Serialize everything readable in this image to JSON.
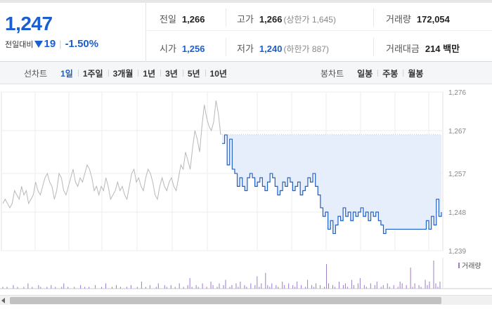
{
  "quote": {
    "price": "1,247",
    "change_label": "전일대비",
    "change_value": "19",
    "change_rate": "-1.50%",
    "change_direction_icon": "down-triangle-icon",
    "color_down": "#1a5fd1",
    "stats": [
      {
        "label": "전일",
        "value": "1,266",
        "extra": "",
        "color": "default"
      },
      {
        "label": "고가",
        "value": "1,266",
        "extra": "(상한가 1,645)",
        "color": "default"
      },
      {
        "label": "거래량",
        "value": "172,054",
        "extra": "",
        "color": "default"
      },
      {
        "label": "시가",
        "value": "1,256",
        "extra": "",
        "color": "blue"
      },
      {
        "label": "저가",
        "value": "1,240",
        "extra": "(하한가 887)",
        "color": "blue"
      },
      {
        "label": "거래대금",
        "value": "214 백만",
        "extra": "",
        "color": "default"
      }
    ]
  },
  "toolbar": {
    "line_chart_title": "선차트",
    "line_periods": [
      "1일",
      "1주일",
      "3개월",
      "1년",
      "3년",
      "5년",
      "10년"
    ],
    "active_period": "1일",
    "candle_chart_title": "봉차트",
    "candle_periods": [
      "일봉",
      "주봉",
      "월봉"
    ]
  },
  "chart_data": {
    "type": "line",
    "y_ticks": [
      "1,276",
      "1,267",
      "1,257",
      "1,248",
      "1,239"
    ],
    "ylim": [
      1239,
      1276
    ],
    "prev_close_ref": 1266,
    "volume_legend": "거래량",
    "colors": {
      "prev_day_line": "#b8b8b8",
      "today_line": "#1f5fc8",
      "fill": "#e6eefb",
      "volume_bar": "#9a7fc8"
    },
    "prev_day_series": [
      1250,
      1251,
      1250,
      1249,
      1250,
      1253,
      1252,
      1251,
      1254,
      1252,
      1253,
      1250,
      1251,
      1252,
      1255,
      1253,
      1252,
      1254,
      1256,
      1257,
      1255,
      1254,
      1251,
      1253,
      1257,
      1256,
      1253,
      1252,
      1254,
      1256,
      1258,
      1255,
      1254,
      1256,
      1255,
      1257,
      1259,
      1258,
      1256,
      1253,
      1254,
      1252,
      1254,
      1253,
      1256,
      1254,
      1251,
      1252,
      1253,
      1255,
      1253,
      1254,
      1252,
      1251,
      1254,
      1257,
      1258,
      1255,
      1256,
      1254,
      1253,
      1256,
      1258,
      1257,
      1255,
      1252,
      1251,
      1254,
      1256,
      1254,
      1253,
      1255,
      1256,
      1254,
      1253,
      1256,
      1259,
      1258,
      1262,
      1260,
      1258,
      1263,
      1267,
      1265,
      1262,
      1268,
      1273,
      1270,
      1268,
      1267,
      1269,
      1274,
      1271,
      1266
    ],
    "today_series": [
      1264,
      1266,
      1259,
      1265,
      1258,
      1257,
      1254,
      1256,
      1254,
      1253,
      1256,
      1257,
      1256,
      1254,
      1255,
      1256,
      1254,
      1253,
      1255,
      1257,
      1256,
      1254,
      1252,
      1253,
      1255,
      1254,
      1256,
      1255,
      1253,
      1254,
      1255,
      1252,
      1253,
      1254,
      1256,
      1255,
      1257,
      1254,
      1252,
      1249,
      1247,
      1248,
      1244,
      1246,
      1243,
      1245,
      1247,
      1246,
      1249,
      1247,
      1248,
      1246,
      1248,
      1247,
      1248,
      1249,
      1247,
      1248,
      1246,
      1248,
      1247,
      1248,
      1246,
      1245,
      1243,
      1244,
      1244,
      1244,
      1244,
      1244,
      1244,
      1244,
      1244,
      1244,
      1244,
      1244,
      1244,
      1244,
      1244,
      1244,
      1244,
      1246,
      1244,
      1247,
      1245,
      1251,
      1247,
      1248
    ],
    "volume_series": [
      1,
      0,
      1,
      0,
      0,
      2,
      0,
      1,
      0,
      0,
      1,
      0,
      3,
      0,
      1,
      0,
      0,
      2,
      1,
      0,
      0,
      1,
      0,
      2,
      0,
      1,
      0,
      0,
      1,
      3,
      0,
      1,
      0,
      0,
      1,
      0,
      0,
      2,
      0,
      1,
      0,
      1,
      0,
      0,
      2,
      0,
      0,
      1,
      0,
      3,
      0,
      0,
      1,
      0,
      2,
      0,
      1,
      0,
      0,
      1,
      0,
      2,
      0,
      0,
      1,
      0,
      4,
      0,
      1,
      0,
      2,
      0,
      0,
      1,
      3,
      0,
      0,
      2,
      1,
      0,
      2,
      0,
      1,
      0,
      3,
      0,
      1,
      0,
      2,
      6,
      1,
      0,
      2,
      1,
      0,
      3,
      0,
      1,
      0,
      4,
      2,
      0,
      1,
      3,
      0,
      2,
      5,
      0,
      1,
      2,
      0,
      3,
      1,
      4,
      0,
      2,
      1,
      0,
      3,
      0,
      2,
      7,
      1,
      3,
      0,
      9,
      2,
      1,
      3,
      0,
      2,
      1,
      0,
      4,
      2,
      0,
      3,
      0,
      2,
      1,
      4,
      0,
      2,
      0,
      1,
      5,
      0,
      2,
      1,
      3,
      0,
      2,
      0,
      1,
      14,
      3,
      0,
      2,
      1,
      0,
      4,
      0,
      2,
      3,
      1,
      0,
      5,
      2,
      0,
      3,
      6,
      0,
      2,
      1,
      0,
      3,
      0,
      2,
      4,
      0,
      1,
      2,
      0,
      3,
      1,
      0,
      2,
      0,
      1,
      4,
      3,
      0,
      2,
      0,
      12,
      1,
      3,
      0,
      2,
      1,
      0,
      5,
      2,
      4,
      0,
      16,
      3,
      1,
      4
    ]
  }
}
